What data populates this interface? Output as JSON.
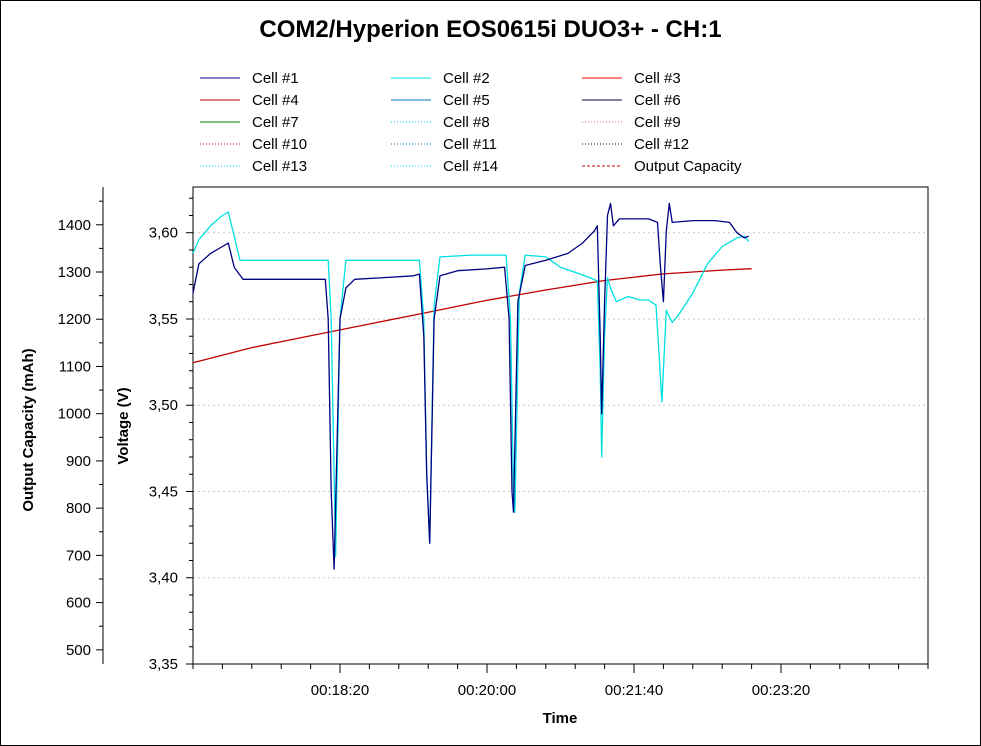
{
  "chart_data": {
    "type": "line",
    "title": "COM2/Hyperion EOS0615i DUO3+ - CH:1",
    "xlabel": "Time",
    "ylabel_left": "Output Capacity (mAh)",
    "ylabel_right": "Voltage (V)",
    "xlim": [
      "00:16:40",
      "00:25:00"
    ],
    "x_ticks": [
      "00:18:20",
      "00:20:00",
      "00:21:40",
      "00:23:20"
    ],
    "ylim_left": [
      470,
      1480
    ],
    "y_ticks_left": [
      "500",
      "600",
      "700",
      "800",
      "900",
      "1000",
      "1100",
      "1200",
      "1300",
      "1400"
    ],
    "ylim_right": [
      3.35,
      3.6265
    ],
    "y_ticks_right": [
      "3,35",
      "3,40",
      "3,45",
      "3,50",
      "3,55",
      "3,60"
    ],
    "grid": "horizontal dotted at voltage ticks",
    "legend_position": "top",
    "legend": [
      {
        "name": "Cell #1",
        "color": "#000080",
        "dash": "solid"
      },
      {
        "name": "Cell #2",
        "color": "#00e0e0",
        "dash": "solid"
      },
      {
        "name": "Cell #3",
        "color": "#ff0000",
        "dash": "solid"
      },
      {
        "name": "Cell #4",
        "color": "#c00000",
        "dash": "solid"
      },
      {
        "name": "Cell #5",
        "color": "#0070c0",
        "dash": "solid"
      },
      {
        "name": "Cell #6",
        "color": "#000040",
        "dash": "solid"
      },
      {
        "name": "Cell #7",
        "color": "#008000",
        "dash": "solid"
      },
      {
        "name": "Cell #8",
        "color": "#00c0ff",
        "dash": "dotted"
      },
      {
        "name": "Cell #9",
        "color": "#ff6060",
        "dash": "dotted"
      },
      {
        "name": "Cell #10",
        "color": "#c00000",
        "dash": "dotted"
      },
      {
        "name": "Cell #11",
        "color": "#0070c0",
        "dash": "dotted"
      },
      {
        "name": "Cell #12",
        "color": "#000000",
        "dash": "dotted"
      },
      {
        "name": "Cell #13",
        "color": "#00c0ff",
        "dash": "dotted"
      },
      {
        "name": "Cell #14",
        "color": "#00e0ff",
        "dash": "dotted"
      },
      {
        "name": "Output Capacity",
        "color": "#c00000",
        "dash": "dashed"
      }
    ],
    "series": [
      {
        "name": "Cell #1",
        "axis": "voltage",
        "color": "#000080",
        "points": [
          [
            "00:16:40",
            3.565
          ],
          [
            "00:16:44",
            3.582
          ],
          [
            "00:16:52",
            3.588
          ],
          [
            "00:17:00",
            3.592
          ],
          [
            "00:17:04",
            3.594
          ],
          [
            "00:17:08",
            3.58
          ],
          [
            "00:17:14",
            3.573
          ],
          [
            "00:17:30",
            3.573
          ],
          [
            "00:17:50",
            3.573
          ],
          [
            "00:18:10",
            3.573
          ],
          [
            "00:18:12",
            3.55
          ],
          [
            "00:18:14",
            3.45
          ],
          [
            "00:18:16",
            3.405
          ],
          [
            "00:18:20",
            3.55
          ],
          [
            "00:18:24",
            3.568
          ],
          [
            "00:18:30",
            3.573
          ],
          [
            "00:18:50",
            3.574
          ],
          [
            "00:19:10",
            3.575
          ],
          [
            "00:19:14",
            3.576
          ],
          [
            "00:19:17",
            3.54
          ],
          [
            "00:19:19",
            3.46
          ],
          [
            "00:19:21",
            3.42
          ],
          [
            "00:19:24",
            3.55
          ],
          [
            "00:19:28",
            3.575
          ],
          [
            "00:19:40",
            3.578
          ],
          [
            "00:20:00",
            3.579
          ],
          [
            "00:20:12",
            3.58
          ],
          [
            "00:20:15",
            3.55
          ],
          [
            "00:20:17",
            3.45
          ],
          [
            "00:20:18",
            3.438
          ],
          [
            "00:20:21",
            3.56
          ],
          [
            "00:20:26",
            3.581
          ],
          [
            "00:20:40",
            3.584
          ],
          [
            "00:20:55",
            3.588
          ],
          [
            "00:21:05",
            3.594
          ],
          [
            "00:21:13",
            3.601
          ],
          [
            "00:21:15",
            3.604
          ],
          [
            "00:21:17",
            3.54
          ],
          [
            "00:21:18",
            3.495
          ],
          [
            "00:21:20",
            3.56
          ],
          [
            "00:21:22",
            3.61
          ],
          [
            "00:21:24",
            3.617
          ],
          [
            "00:21:26",
            3.604
          ],
          [
            "00:21:30",
            3.608
          ],
          [
            "00:21:40",
            3.608
          ],
          [
            "00:21:50",
            3.608
          ],
          [
            "00:21:56",
            3.606
          ],
          [
            "00:21:58",
            3.58
          ],
          [
            "00:22:00",
            3.56
          ],
          [
            "00:22:02",
            3.601
          ],
          [
            "00:22:04",
            3.617
          ],
          [
            "00:22:06",
            3.606
          ],
          [
            "00:22:20",
            3.607
          ],
          [
            "00:22:35",
            3.607
          ],
          [
            "00:22:45",
            3.606
          ],
          [
            "00:22:50",
            3.6
          ],
          [
            "00:22:55",
            3.597
          ],
          [
            "00:22:58",
            3.598
          ]
        ]
      },
      {
        "name": "Cell #2",
        "axis": "voltage",
        "color": "#00e0e0",
        "points": [
          [
            "00:16:40",
            3.588
          ],
          [
            "00:16:44",
            3.596
          ],
          [
            "00:16:52",
            3.604
          ],
          [
            "00:17:00",
            3.61
          ],
          [
            "00:17:04",
            3.612
          ],
          [
            "00:17:08",
            3.598
          ],
          [
            "00:17:12",
            3.584
          ],
          [
            "00:17:30",
            3.584
          ],
          [
            "00:17:50",
            3.584
          ],
          [
            "00:18:12",
            3.584
          ],
          [
            "00:18:14",
            3.55
          ],
          [
            "00:18:16",
            3.46
          ],
          [
            "00:18:17",
            3.412
          ],
          [
            "00:18:20",
            3.55
          ],
          [
            "00:18:24",
            3.584
          ],
          [
            "00:18:50",
            3.584
          ],
          [
            "00:19:14",
            3.584
          ],
          [
            "00:19:17",
            3.55
          ],
          [
            "00:19:19",
            3.46
          ],
          [
            "00:19:21",
            3.42
          ],
          [
            "00:19:24",
            3.558
          ],
          [
            "00:19:28",
            3.586
          ],
          [
            "00:19:50",
            3.587
          ],
          [
            "00:20:13",
            3.587
          ],
          [
            "00:20:16",
            3.55
          ],
          [
            "00:20:18",
            3.45
          ],
          [
            "00:20:19",
            3.438
          ],
          [
            "00:20:22",
            3.565
          ],
          [
            "00:20:26",
            3.587
          ],
          [
            "00:20:40",
            3.586
          ],
          [
            "00:20:50",
            3.58
          ],
          [
            "00:21:00",
            3.577
          ],
          [
            "00:21:10",
            3.574
          ],
          [
            "00:21:15",
            3.572
          ],
          [
            "00:21:17",
            3.52
          ],
          [
            "00:21:18",
            3.47
          ],
          [
            "00:21:20",
            3.54
          ],
          [
            "00:21:22",
            3.574
          ],
          [
            "00:21:24",
            3.568
          ],
          [
            "00:21:28",
            3.56
          ],
          [
            "00:21:36",
            3.563
          ],
          [
            "00:21:44",
            3.561
          ],
          [
            "00:21:50",
            3.561
          ],
          [
            "00:21:55",
            3.558
          ],
          [
            "00:21:57",
            3.53
          ],
          [
            "00:21:59",
            3.502
          ],
          [
            "00:22:02",
            3.555
          ],
          [
            "00:22:06",
            3.548
          ],
          [
            "00:22:10",
            3.552
          ],
          [
            "00:22:20",
            3.565
          ],
          [
            "00:22:30",
            3.582
          ],
          [
            "00:22:40",
            3.592
          ],
          [
            "00:22:50",
            3.597
          ],
          [
            "00:22:55",
            3.598
          ],
          [
            "00:22:58",
            3.595
          ]
        ]
      },
      {
        "name": "Output Capacity",
        "axis": "capacity",
        "color": "#c00000",
        "points": [
          [
            "00:16:40",
            1108
          ],
          [
            "00:17:20",
            1140
          ],
          [
            "00:18:00",
            1165
          ],
          [
            "00:18:40",
            1190
          ],
          [
            "00:19:20",
            1215
          ],
          [
            "00:20:00",
            1240
          ],
          [
            "00:20:40",
            1262
          ],
          [
            "00:21:20",
            1282
          ],
          [
            "00:22:00",
            1296
          ],
          [
            "00:22:40",
            1304
          ],
          [
            "00:23:00",
            1307
          ]
        ]
      }
    ]
  }
}
